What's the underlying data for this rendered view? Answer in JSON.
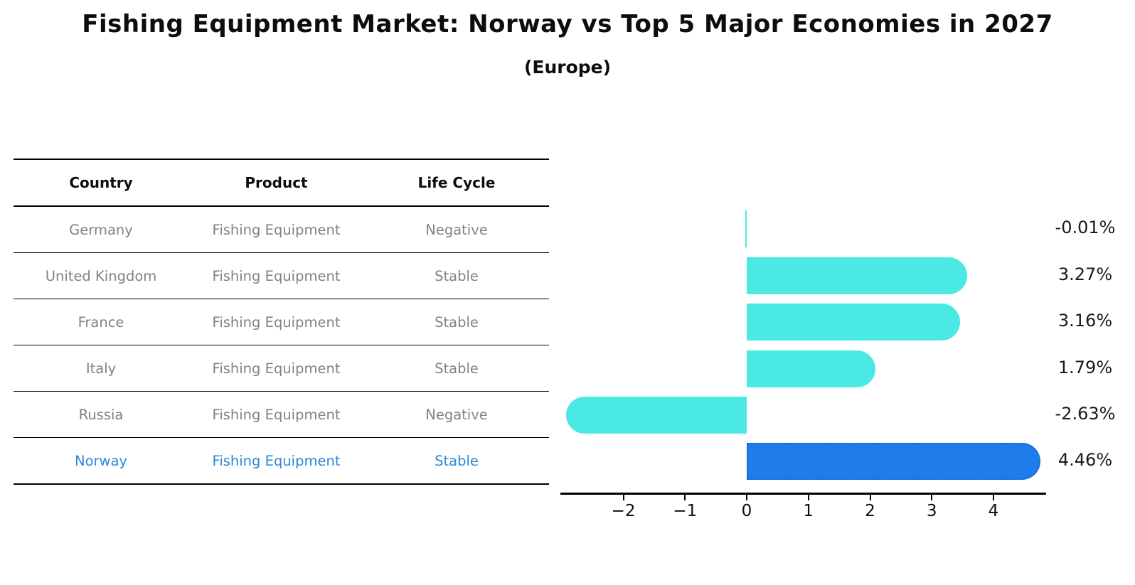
{
  "title": "Fishing Equipment Market: Norway vs Top 5 Major Economies in 2027",
  "subtitle": "(Europe)",
  "table": {
    "headers": [
      "Country",
      "Product",
      "Life Cycle"
    ],
    "rows": [
      {
        "country": "Germany",
        "product": "Fishing Equipment",
        "life_cycle": "Negative",
        "highlight": false
      },
      {
        "country": "United Kingdom",
        "product": "Fishing Equipment",
        "life_cycle": "Stable",
        "highlight": false
      },
      {
        "country": "France",
        "product": "Fishing Equipment",
        "life_cycle": "Stable",
        "highlight": false
      },
      {
        "country": "Italy",
        "product": "Fishing Equipment",
        "life_cycle": "Stable",
        "highlight": false
      },
      {
        "country": "Russia",
        "product": "Fishing Equipment",
        "life_cycle": "Negative",
        "highlight": false
      },
      {
        "country": "Norway",
        "product": "Fishing Equipment",
        "life_cycle": "Stable",
        "highlight": true
      }
    ]
  },
  "chart_data": {
    "type": "bar",
    "orientation": "horizontal",
    "categories": [
      "Germany",
      "United Kingdom",
      "France",
      "Italy",
      "Russia",
      "Norway"
    ],
    "values": [
      -0.01,
      3.27,
      3.16,
      1.79,
      -2.63,
      4.46
    ],
    "value_labels": [
      "-0.01%",
      "3.27%",
      "3.16%",
      "1.79%",
      "-2.63%",
      "4.46%"
    ],
    "highlight_index": 5,
    "xticks": [
      -2,
      -1,
      0,
      1,
      2,
      3,
      4
    ],
    "xtick_labels": [
      "−2",
      "−1",
      "0",
      "1",
      "2",
      "3",
      "4"
    ],
    "xlim": [
      -3.02,
      4.85
    ],
    "grid": false,
    "legend": "none",
    "colors": {
      "bar": "#4BE9E4",
      "highlight_bar": "#1F7CEB",
      "highlight_border": "#155FD0",
      "highlight_text": "#2E86D9",
      "table_text": "#828282"
    }
  }
}
